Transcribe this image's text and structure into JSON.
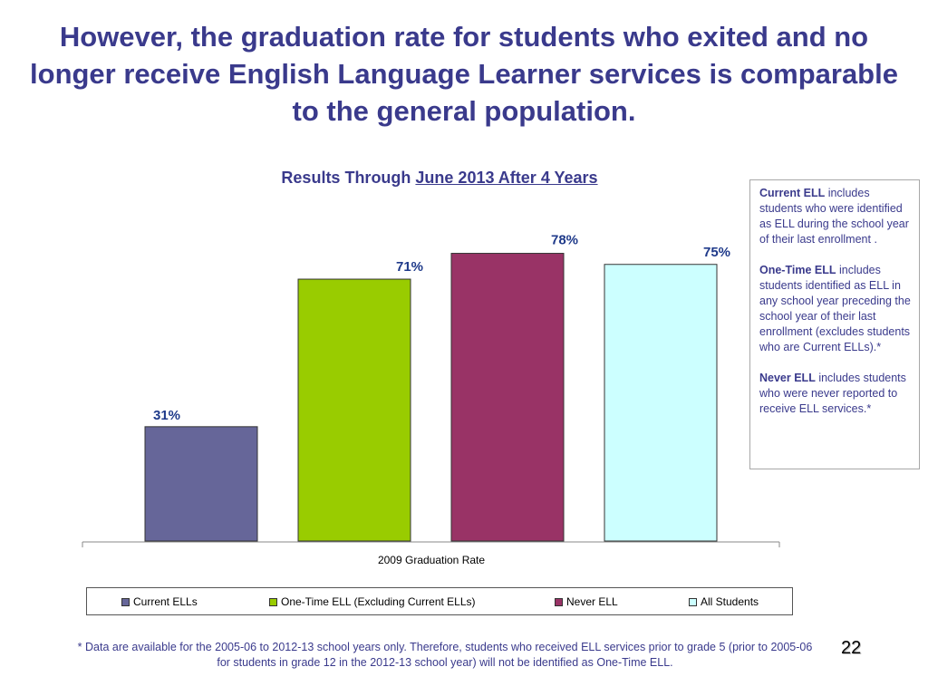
{
  "slide": {
    "title": "However, the graduation rate for students who exited and no longer receive English Language Learner services is comparable to the general population.",
    "page_number": "22",
    "footnote": "* Data are available for the 2005-06 to 2012-13 school years only.  Therefore, students who received ELL services prior to grade 5 (prior to 2005-06 for students in grade 12 in the 2012-13 school year) will not be identified as One-Time ELL."
  },
  "subtitle": {
    "prefix": "Results Through ",
    "underlined": "June 2013 After 4 Years"
  },
  "definitions": [
    {
      "term": "Current ELL",
      "text": " includes students who were identified as ELL during the school year of their last enrollment ."
    },
    {
      "term": "One-Time ELL",
      "text": " includes students identified as ELL in any school year preceding the school year of their last enrollment (excludes students who are Current ELLs).*"
    },
    {
      "term": "Never ELL",
      "text": " includes students who were never reported to receive ELL services.*"
    }
  ],
  "chart_data": {
    "type": "bar",
    "categories": [
      "2009 Graduation Rate"
    ],
    "series": [
      {
        "name": "Current ELLs",
        "values": [
          31
        ],
        "label": "31%",
        "color": "#666699"
      },
      {
        "name": "One-Time ELL (Excluding Current ELLs)",
        "values": [
          71
        ],
        "label": "71%",
        "color": "#99cc00"
      },
      {
        "name": "Never ELL",
        "values": [
          78
        ],
        "label": "78%",
        "color": "#993366"
      },
      {
        "name": "All Students",
        "values": [
          75
        ],
        "label": "75%",
        "color": "#ccffff"
      }
    ],
    "xlabel": "",
    "ylabel": "",
    "ylim": [
      0,
      100
    ],
    "grid": false,
    "legend": "bottom"
  }
}
